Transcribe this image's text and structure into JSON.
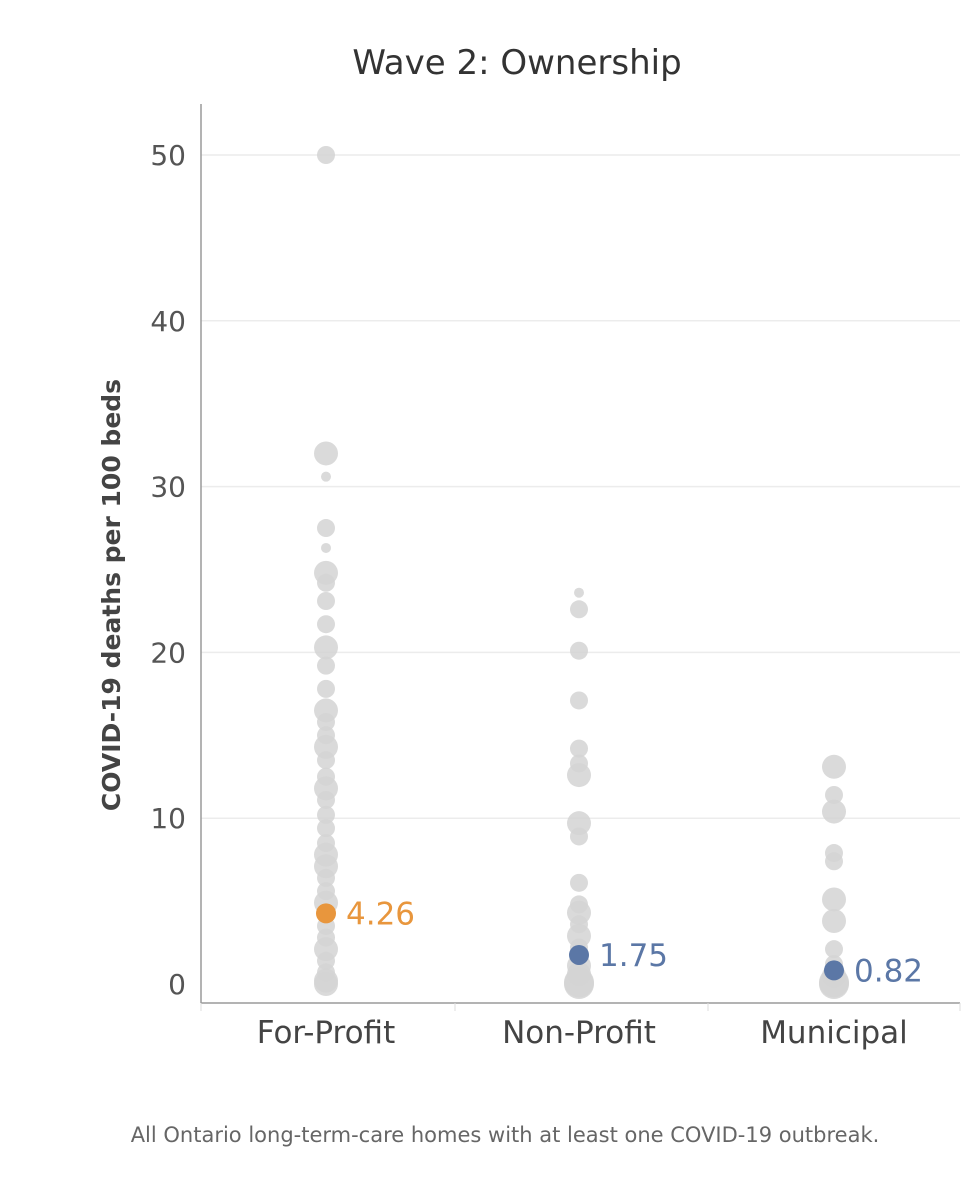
{
  "chart_data": {
    "type": "scatter",
    "title": "Wave 2: Ownership",
    "xlabel": "",
    "ylabel": "COVID-19 deaths per 100 beds",
    "ylim": [
      0,
      53
    ],
    "yticks": [
      0,
      10,
      20,
      30,
      40,
      50
    ],
    "grid": true,
    "categories": [
      "For-Profit",
      "Non-Profit",
      "Municipal"
    ],
    "point_color": "#d3d3d3",
    "series": [
      {
        "name": "For-Profit",
        "median": 4.26,
        "median_label": "4.26",
        "median_color": "#e8963d",
        "points": [
          {
            "y": 50,
            "s": 1
          },
          {
            "y": 32,
            "s": 2
          },
          {
            "y": 30.6,
            "s": 0
          },
          {
            "y": 27.5,
            "s": 1
          },
          {
            "y": 26.3,
            "s": 0
          },
          {
            "y": 24.8,
            "s": 2
          },
          {
            "y": 24.2,
            "s": 1
          },
          {
            "y": 23.1,
            "s": 1
          },
          {
            "y": 21.7,
            "s": 1
          },
          {
            "y": 20.3,
            "s": 2
          },
          {
            "y": 19.2,
            "s": 1
          },
          {
            "y": 17.8,
            "s": 1
          },
          {
            "y": 16.5,
            "s": 2
          },
          {
            "y": 15.8,
            "s": 1
          },
          {
            "y": 15,
            "s": 1
          },
          {
            "y": 14.3,
            "s": 2
          },
          {
            "y": 13.5,
            "s": 1
          },
          {
            "y": 12.5,
            "s": 1
          },
          {
            "y": 11.8,
            "s": 2
          },
          {
            "y": 11.1,
            "s": 1
          },
          {
            "y": 10.2,
            "s": 1
          },
          {
            "y": 9.4,
            "s": 1
          },
          {
            "y": 8.5,
            "s": 1
          },
          {
            "y": 7.8,
            "s": 2
          },
          {
            "y": 7.1,
            "s": 2
          },
          {
            "y": 6.4,
            "s": 1
          },
          {
            "y": 5.6,
            "s": 1
          },
          {
            "y": 4.9,
            "s": 2
          },
          {
            "y": 3.5,
            "s": 1
          },
          {
            "y": 2.8,
            "s": 1
          },
          {
            "y": 2.1,
            "s": 2
          },
          {
            "y": 1.4,
            "s": 1
          },
          {
            "y": 0.7,
            "s": 1
          },
          {
            "y": 0.2,
            "s": 2
          },
          {
            "y": 0,
            "s": 2
          }
        ]
      },
      {
        "name": "Non-Profit",
        "median": 1.75,
        "median_label": "1.75",
        "median_color": "#5b77a6",
        "points": [
          {
            "y": 23.6,
            "s": 0
          },
          {
            "y": 22.6,
            "s": 1
          },
          {
            "y": 20.1,
            "s": 1
          },
          {
            "y": 17.1,
            "s": 1
          },
          {
            "y": 14.2,
            "s": 1
          },
          {
            "y": 13.3,
            "s": 1
          },
          {
            "y": 12.6,
            "s": 2
          },
          {
            "y": 9.7,
            "s": 2
          },
          {
            "y": 8.9,
            "s": 1
          },
          {
            "y": 6.1,
            "s": 1
          },
          {
            "y": 4.8,
            "s": 1
          },
          {
            "y": 4.3,
            "s": 2
          },
          {
            "y": 3.6,
            "s": 1
          },
          {
            "y": 2.9,
            "s": 2
          },
          {
            "y": 2.2,
            "s": 1
          },
          {
            "y": 1.1,
            "s": 2
          },
          {
            "y": 0.6,
            "s": 2
          },
          {
            "y": 0.1,
            "s": 3
          },
          {
            "y": 0,
            "s": 3
          }
        ]
      },
      {
        "name": "Municipal",
        "median": 0.82,
        "median_label": "0.82",
        "median_color": "#5b77a6",
        "points": [
          {
            "y": 13.1,
            "s": 2
          },
          {
            "y": 11.4,
            "s": 1
          },
          {
            "y": 10.4,
            "s": 2
          },
          {
            "y": 7.9,
            "s": 1
          },
          {
            "y": 7.4,
            "s": 1
          },
          {
            "y": 5.1,
            "s": 2
          },
          {
            "y": 3.8,
            "s": 2
          },
          {
            "y": 2.1,
            "s": 1
          },
          {
            "y": 1.2,
            "s": 1
          },
          {
            "y": 0.5,
            "s": 2
          },
          {
            "y": 0.1,
            "s": 3
          },
          {
            "y": 0,
            "s": 3
          }
        ]
      }
    ],
    "footnote": "All Ontario long-term-care homes with at least one COVID-19 outbreak."
  }
}
